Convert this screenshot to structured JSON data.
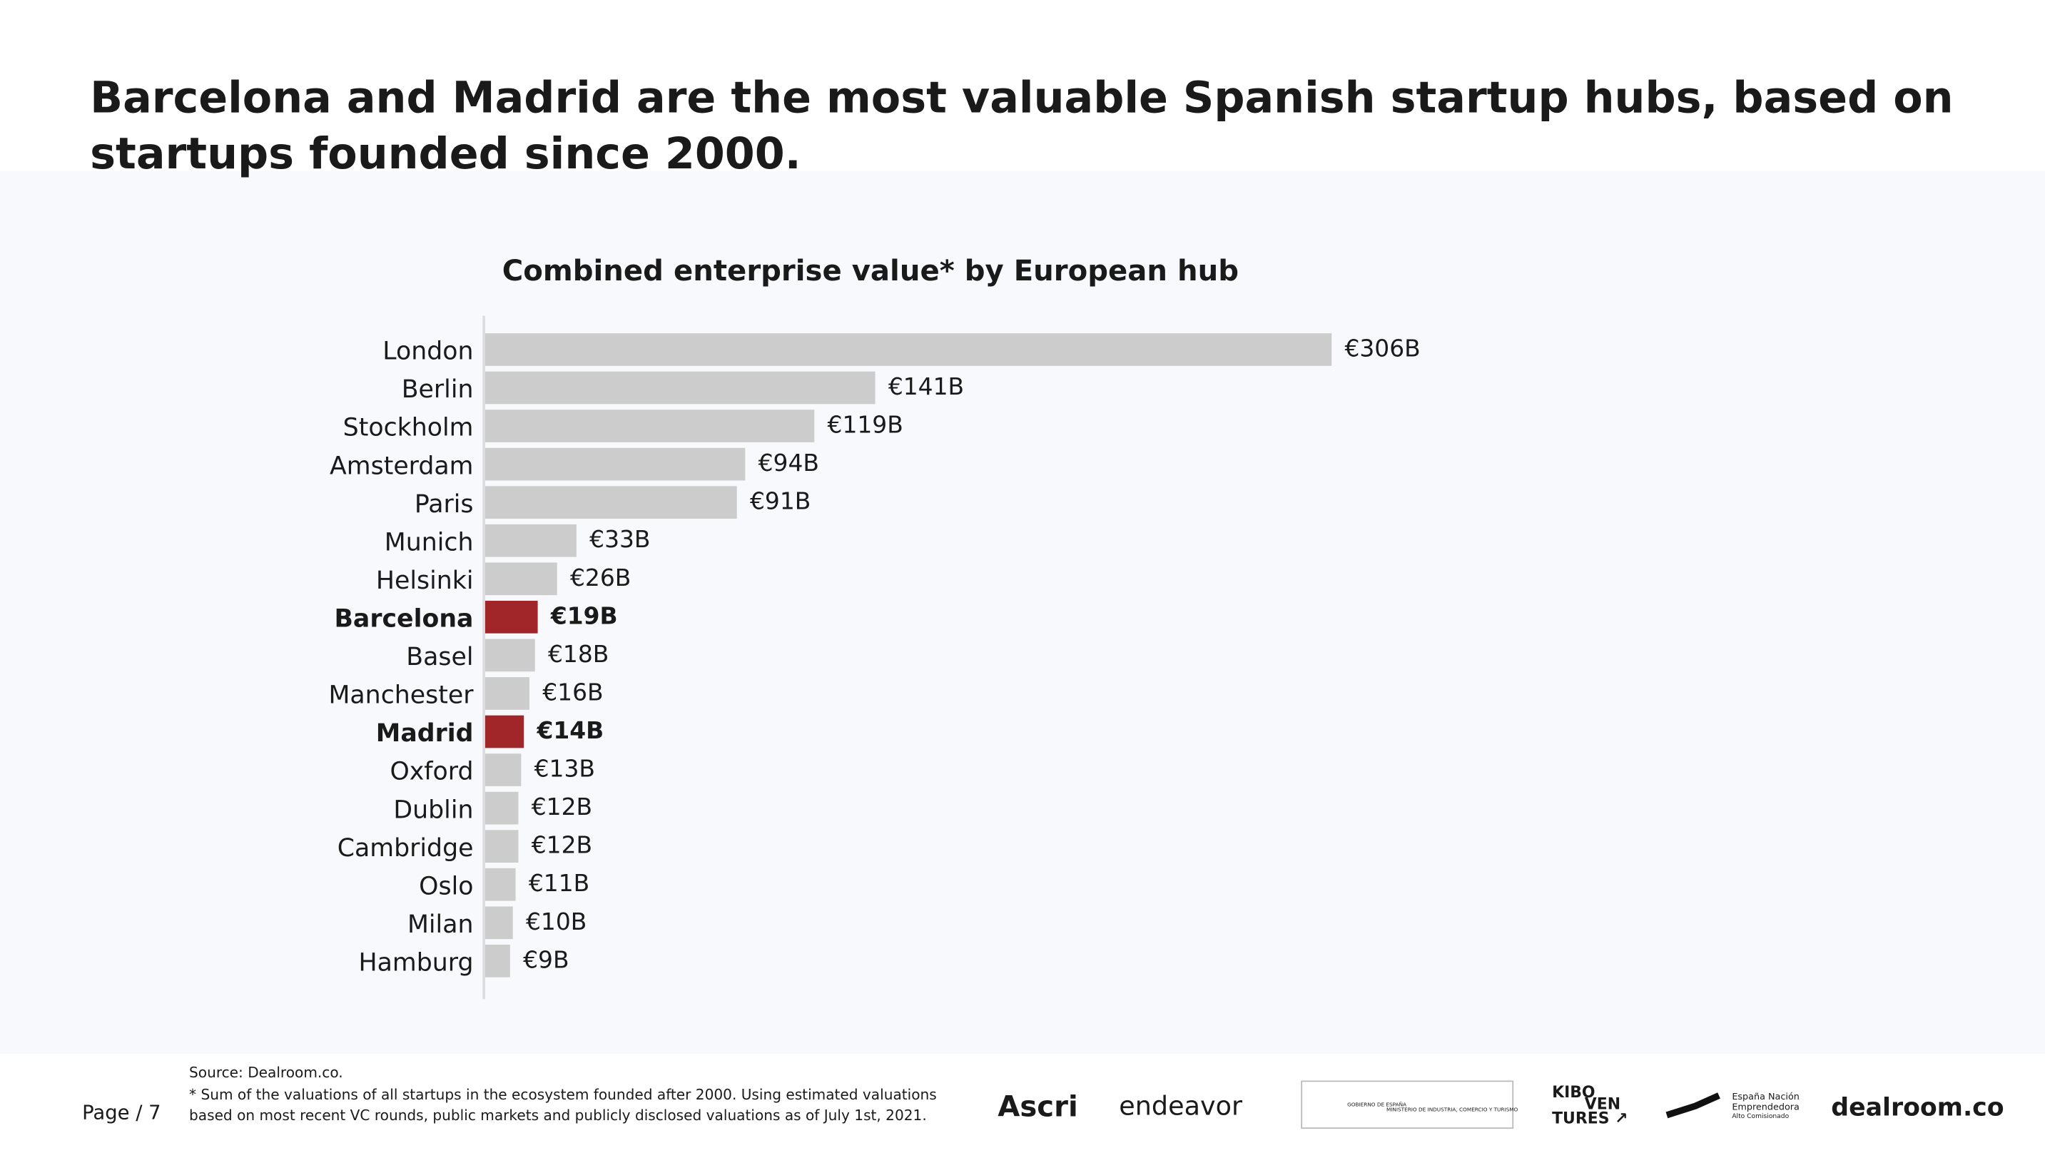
{
  "header": {
    "title_lines": [
      "Barcelona and Madrid are the most valuable Spanish startup hubs, based on",
      "startups founded since 2000."
    ]
  },
  "chart_data": {
    "type": "hbar",
    "title": "Combined enterprise value* by European hub",
    "categories": [
      "London",
      "Berlin",
      "Stockholm",
      "Amsterdam",
      "Paris",
      "Munich",
      "Helsinki",
      "Barcelona",
      "Basel",
      "Manchester",
      "Madrid",
      "Oxford",
      "Dublin",
      "Cambridge",
      "Oslo",
      "Milan",
      "Hamburg"
    ],
    "values": [
      306,
      141,
      119,
      94,
      91,
      33,
      26,
      19,
      18,
      16,
      14,
      13,
      12,
      12,
      11,
      10,
      9
    ],
    "value_labels": [
      "€306B",
      "€141B",
      "€119B",
      "€94B",
      "€91B",
      "€33B",
      "€26B",
      "€19B",
      "€18B",
      "€16B",
      "€14B",
      "€13B",
      "€12B",
      "€12B",
      "€11B",
      "€10B",
      "€9B"
    ],
    "color": "#cccccc",
    "highlight_color": "#a1262a",
    "highlight": [
      "Barcelona",
      "Madrid"
    ]
  },
  "footer": {
    "source": "Source: Dealroom.co.",
    "note_lines": [
      "* Sum of the valuations of all startups in the ecosystem founded after 2000. Using estimated valuations",
      "based on most recent VC rounds, public markets and publicly disclosed valuations as of July 1st, 2021."
    ],
    "page": "Page / 7",
    "logos": [
      "Ascri",
      "endeavor",
      "GOBIERNO DE ESPAÑA",
      "MINISTERIO DE INDUSTRIA, COMERCIO Y TURISMO",
      "KIBO",
      "VEN",
      "TURES ↗",
      "España Nación",
      "Emprendedora",
      "Alto Comisionado",
      "dealroom.co"
    ]
  }
}
